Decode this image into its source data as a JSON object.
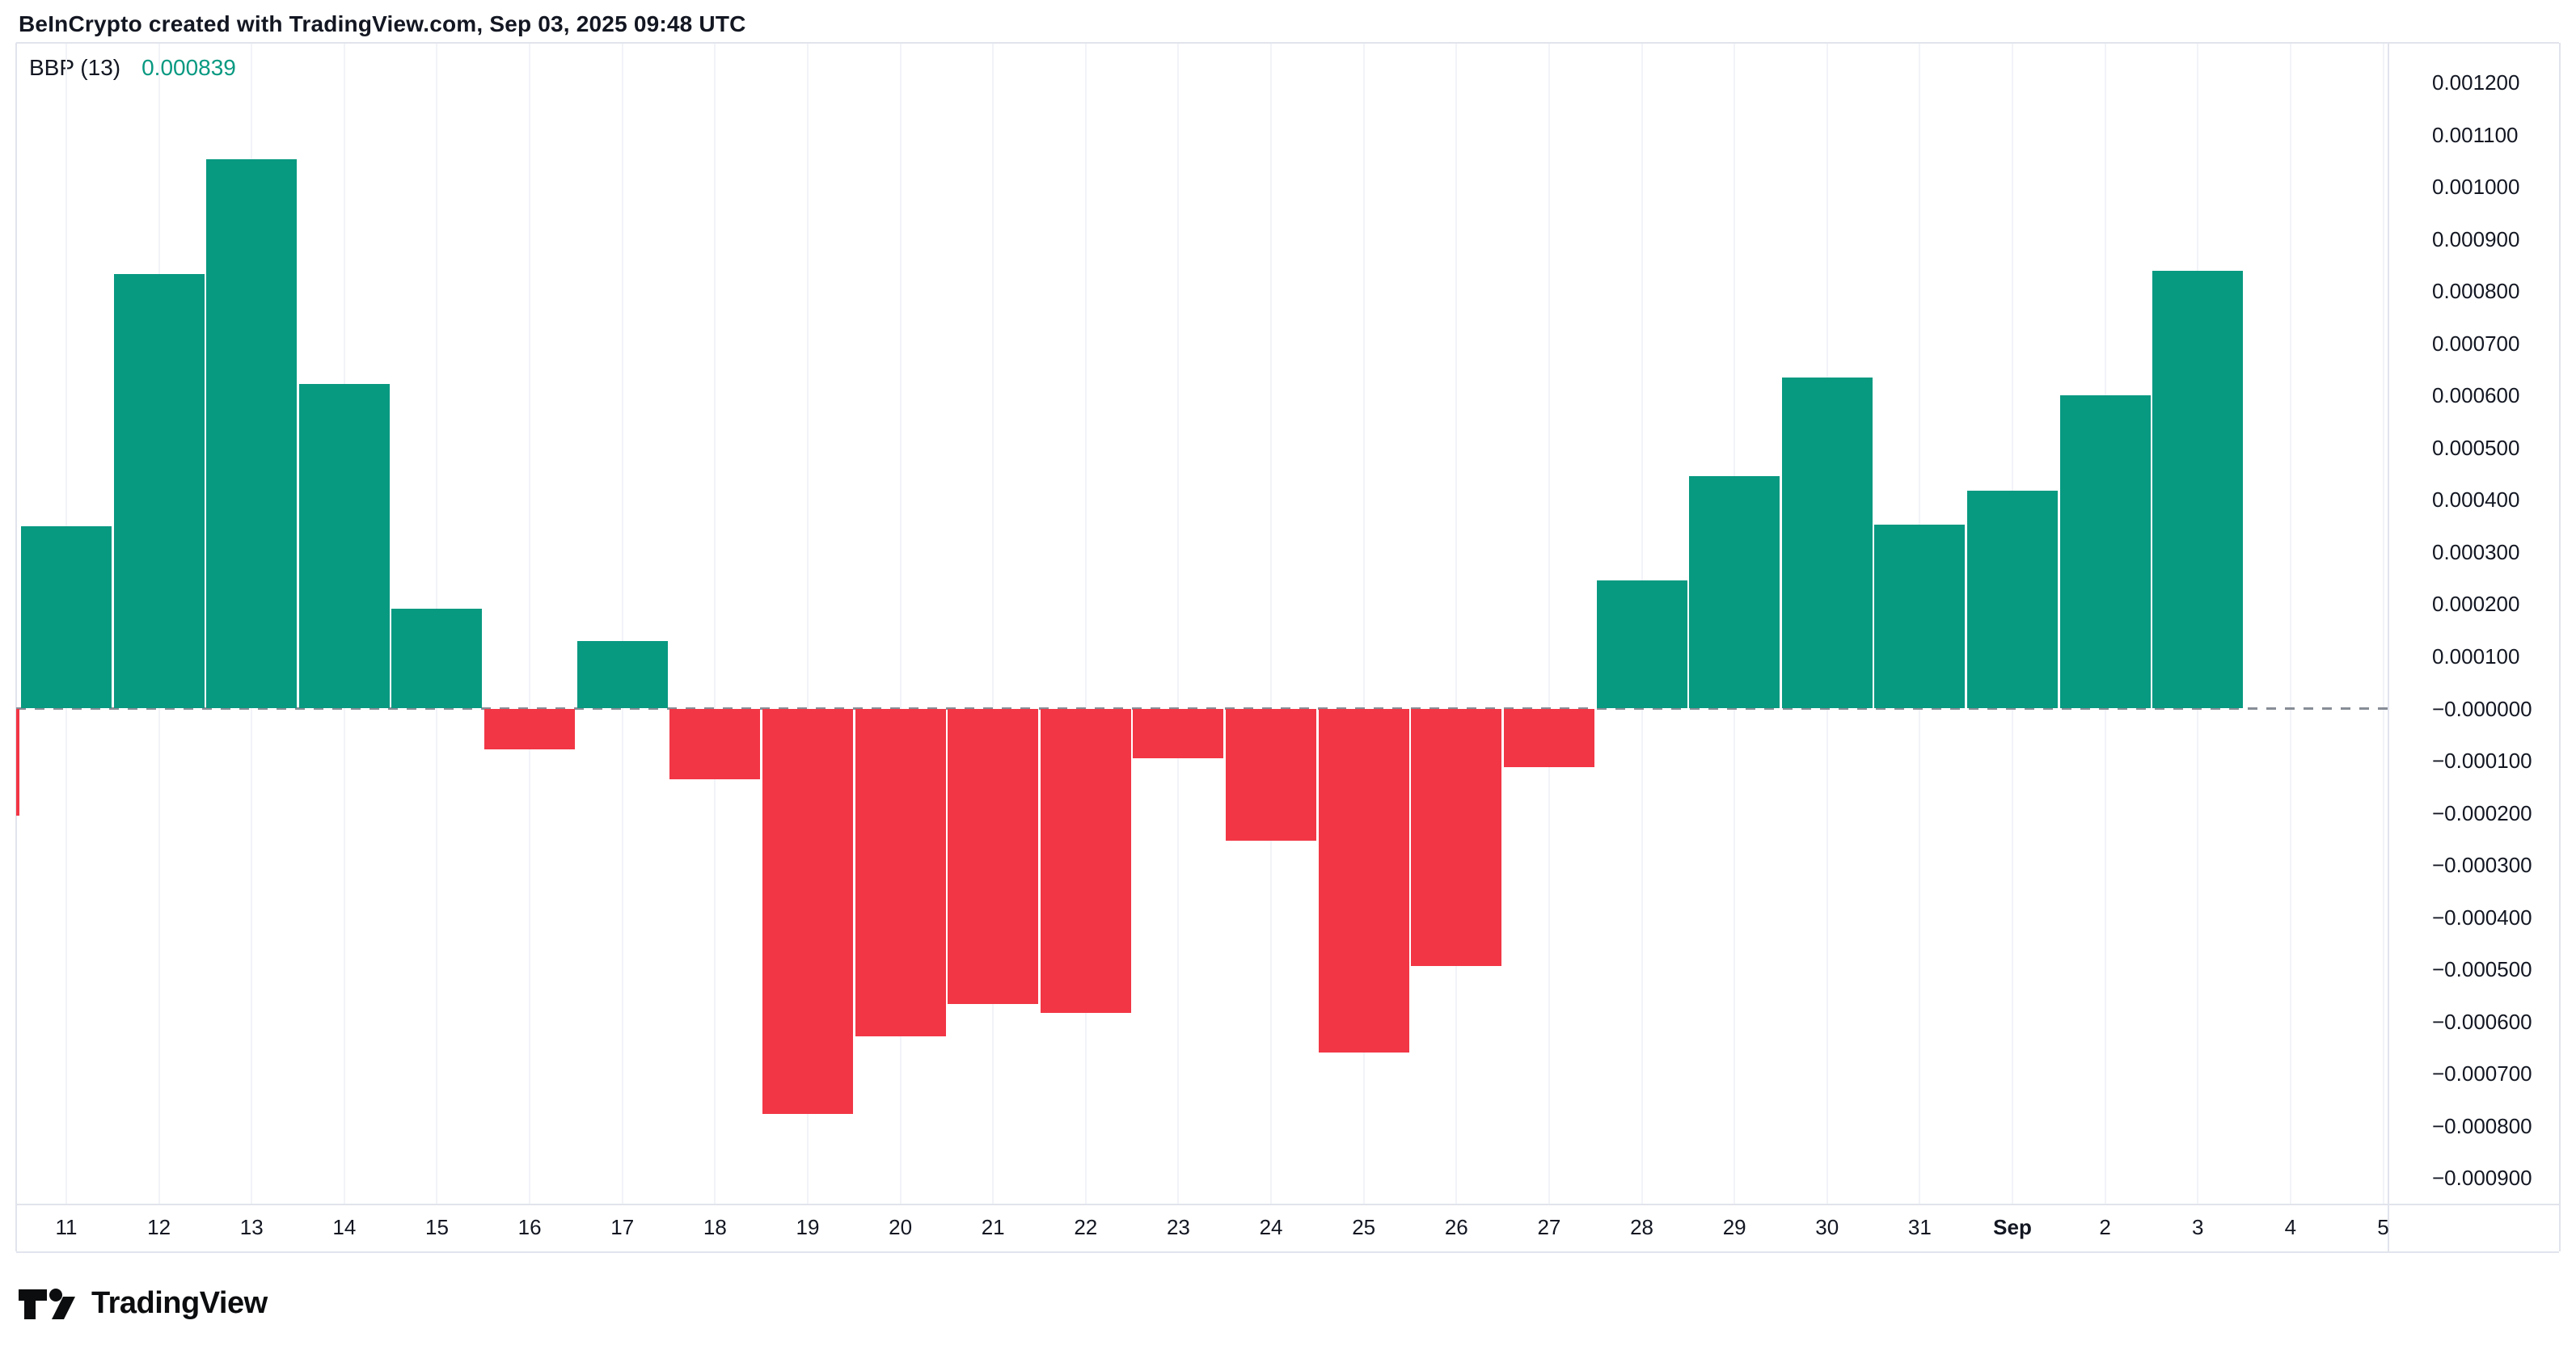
{
  "header": {
    "title": "BeInCrypto created with TradingView.com, Sep 03, 2025 09:48 UTC"
  },
  "legend": {
    "indicator_label": "BBP (13)",
    "indicator_value": "0.000839"
  },
  "footer": {
    "brand": "TradingView"
  },
  "colors": {
    "positive": "#089981",
    "negative": "#F23645",
    "zero_dash": "#888d96",
    "text": "#131722",
    "frame": "#e1e4ec",
    "grid": "#f1f3f8",
    "background": "#ffffff"
  },
  "chart_data": {
    "type": "bar",
    "title": "BBP (13) — Bull Bear Power histogram",
    "legend_position": "top-left",
    "grid": "vertical-faint",
    "categories": [
      "11",
      "12",
      "13",
      "14",
      "15",
      "16",
      "17",
      "18",
      "19",
      "20",
      "21",
      "22",
      "23",
      "24",
      "25",
      "26",
      "27",
      "28",
      "29",
      "30",
      "31",
      "Sep",
      "2",
      "3",
      "4",
      "5"
    ],
    "values": [
      0.00035,
      0.000833,
      0.001053,
      0.000623,
      0.000192,
      -7.9e-05,
      0.000129,
      -0.000135,
      -0.000777,
      -0.000629,
      -0.000566,
      -0.000584,
      -9.6e-05,
      -0.000253,
      -0.000659,
      -0.000493,
      -0.000113,
      0.000245,
      0.000445,
      0.000634,
      0.000352,
      0.000417,
      0.0006,
      0.000839,
      null,
      null
    ],
    "emphasized_category": "Sep",
    "partial_left_bar": {
      "value": -0.000205,
      "note": "bar cut off at left pane edge"
    },
    "current_value": 0.000839,
    "y_tick_labels": [
      "0.001200",
      "0.001100",
      "0.001000",
      "0.000900",
      "0.000800",
      "0.000700",
      "0.000600",
      "0.000500",
      "0.000400",
      "0.000300",
      "0.000200",
      "0.000100",
      "−0.000000",
      "−0.000100",
      "−0.000200",
      "−0.000300",
      "−0.000400",
      "−0.000500",
      "−0.000600",
      "−0.000700",
      "−0.000800",
      "−0.000900"
    ],
    "y_tick_values": [
      0.0012,
      0.0011,
      0.001,
      0.0009,
      0.0008,
      0.0007,
      0.0006,
      0.0005,
      0.0004,
      0.0003,
      0.0002,
      0.0001,
      0.0,
      -0.0001,
      -0.0002,
      -0.0003,
      -0.0004,
      -0.0005,
      -0.0006,
      -0.0007,
      -0.0008,
      -0.0009
    ],
    "ylim": [
      -0.000949,
      0.001276
    ],
    "zero_line": "dashed"
  }
}
